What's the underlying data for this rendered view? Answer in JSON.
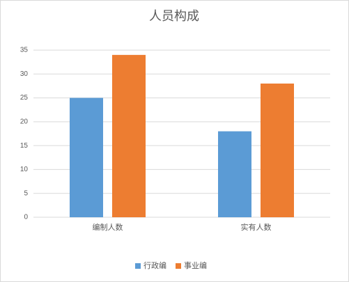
{
  "chart_data": {
    "type": "bar",
    "title": "人员构成",
    "categories": [
      "编制人数",
      "实有人数"
    ],
    "series": [
      {
        "name": "行政编",
        "color": "#5b9bd5",
        "values": [
          25,
          18
        ]
      },
      {
        "name": "事业编",
        "color": "#ed7d31",
        "values": [
          34,
          28
        ]
      }
    ],
    "ylim": [
      0,
      35
    ],
    "yticks": [
      0,
      5,
      10,
      15,
      20,
      25,
      30,
      35
    ],
    "grid": true,
    "legend": "bottom"
  }
}
